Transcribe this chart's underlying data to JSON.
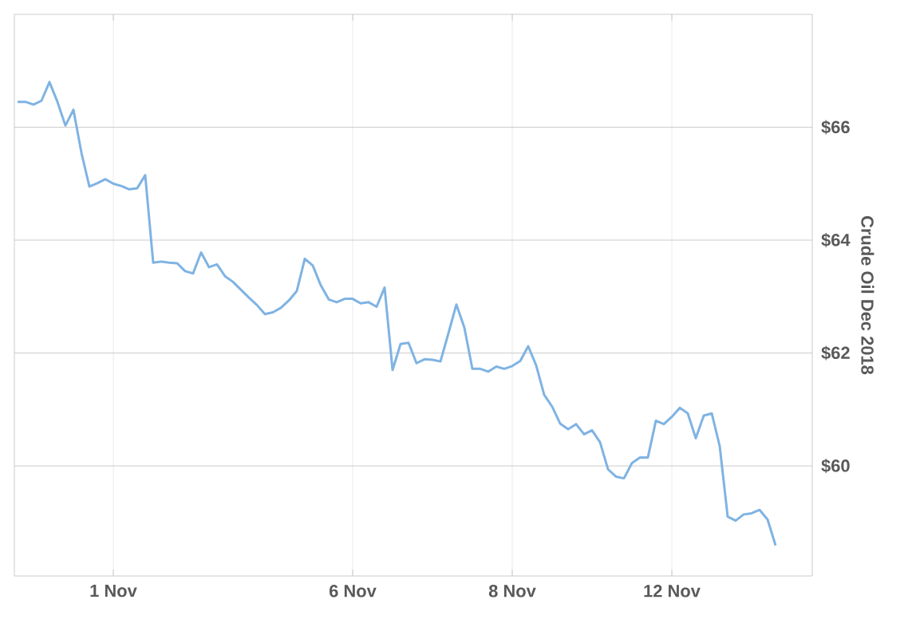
{
  "chart_data": {
    "type": "line",
    "ylabel": "Crude Oil Dec 2018",
    "color": "#7fb3e3",
    "grid": true,
    "categories": [
      null,
      null,
      null,
      null,
      null,
      null,
      null,
      null,
      null,
      null,
      null,
      null,
      "1 Nov",
      null,
      null,
      null,
      null,
      null,
      null,
      null,
      null,
      null,
      null,
      null,
      null,
      null,
      null,
      null,
      null,
      null,
      null,
      null,
      null,
      null,
      null,
      null,
      null,
      null,
      null,
      null,
      null,
      null,
      "6 Nov",
      null,
      null,
      null,
      null,
      null,
      null,
      null,
      null,
      null,
      null,
      null,
      null,
      null,
      null,
      null,
      null,
      null,
      null,
      null,
      "8 Nov",
      null,
      null,
      null,
      null,
      null,
      null,
      null,
      null,
      null,
      null,
      null,
      null,
      null,
      null,
      null,
      null,
      null,
      null,
      null,
      "12 Nov",
      null,
      null,
      null,
      null,
      null,
      null,
      null,
      null,
      null,
      null,
      null,
      null,
      null
    ],
    "ylim": [
      58.05,
      68.0
    ],
    "yticks": [
      {
        "value": 60,
        "label": "$60"
      },
      {
        "value": 62,
        "label": "$62"
      },
      {
        "value": 64,
        "label": "$64"
      },
      {
        "value": 66,
        "label": "$66"
      }
    ],
    "values": [
      66.45,
      66.45,
      66.4,
      66.47,
      66.8,
      66.45,
      66.03,
      66.31,
      65.55,
      64.95,
      65.01,
      65.08,
      65.0,
      64.96,
      64.9,
      64.92,
      65.15,
      63.6,
      63.62,
      63.6,
      63.59,
      63.45,
      63.41,
      63.78,
      63.52,
      63.57,
      63.36,
      63.26,
      63.12,
      62.98,
      62.85,
      62.69,
      62.72,
      62.8,
      62.93,
      63.1,
      63.67,
      63.55,
      63.2,
      62.95,
      62.9,
      62.96,
      62.96,
      62.88,
      62.9,
      62.82,
      63.16,
      61.7,
      62.16,
      62.18,
      61.82,
      61.89,
      61.88,
      61.85,
      62.35,
      62.86,
      62.45,
      61.72,
      61.72,
      61.67,
      61.76,
      61.72,
      61.77,
      61.86,
      62.12,
      61.78,
      61.26,
      61.05,
      60.75,
      60.65,
      60.74,
      60.56,
      60.63,
      60.42,
      59.94,
      59.81,
      59.78,
      60.05,
      60.15,
      60.15,
      60.8,
      60.74,
      60.87,
      61.03,
      60.93,
      60.49,
      60.89,
      60.93,
      60.35,
      59.1,
      59.03,
      59.14,
      59.16,
      59.22,
      59.05,
      58.59
    ]
  }
}
